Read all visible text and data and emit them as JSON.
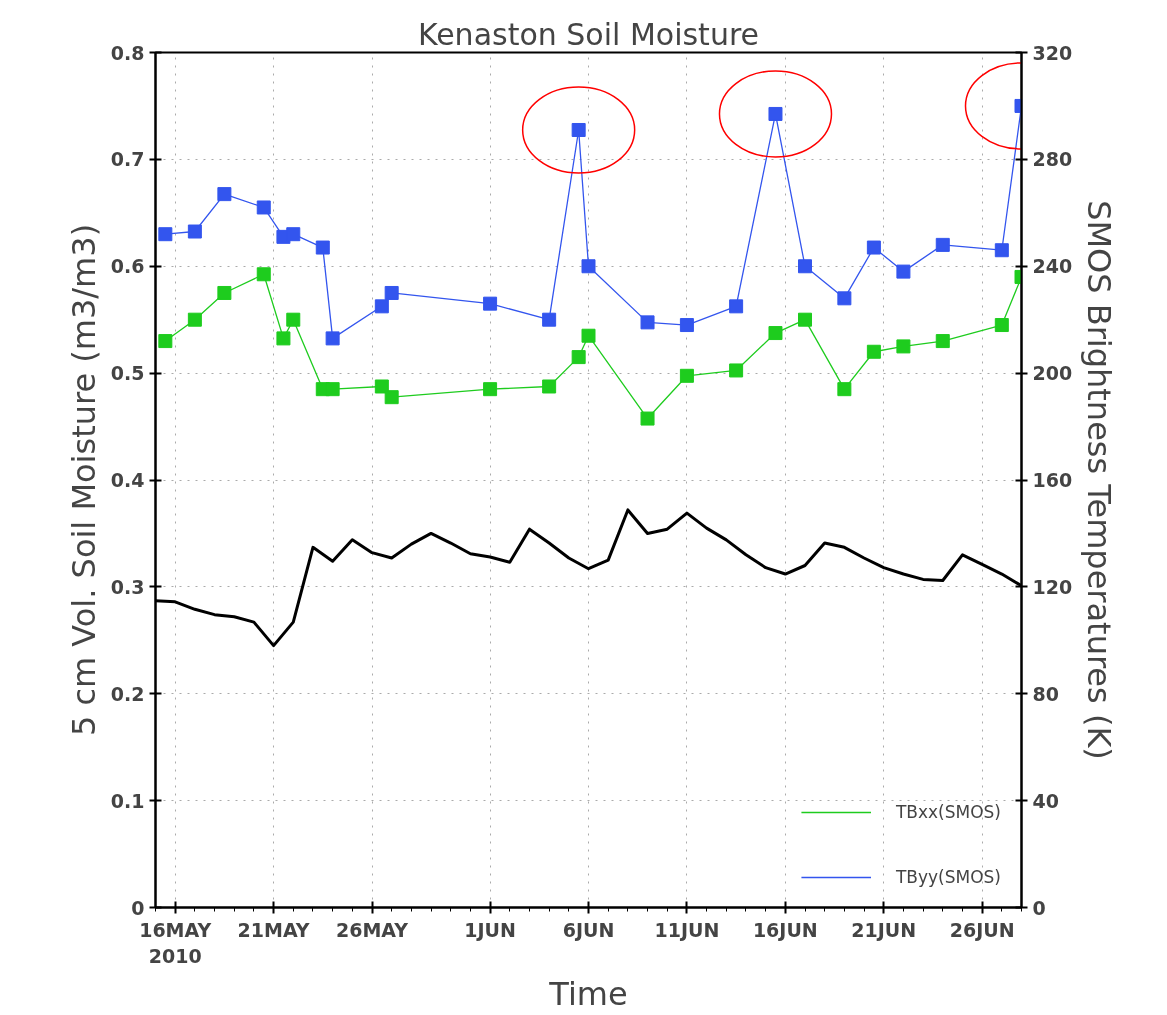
{
  "chart_data": {
    "type": "line",
    "title": "Kenaston Soil Moisture",
    "xlabel": "Time",
    "ylabel": "5 cm Vol. Soil Moisture (m3/m3)",
    "y2label": "SMOS Brightness Temperatures (K)",
    "x": [
      "2010-05-15T12:00",
      "2010-05-17",
      "2010-05-18T12:00",
      "2010-05-20T12:00",
      "2010-05-21T12:00",
      "2010-05-22",
      "2010-05-23T12:00",
      "2010-05-24",
      "2010-05-26T12:00",
      "2010-05-27",
      "2010-06-01",
      "2010-06-04",
      "2010-06-05T12:00",
      "2010-06-06",
      "2010-06-09",
      "2010-06-11",
      "2010-06-13T12:00",
      "2010-06-15T12:00",
      "2010-06-17",
      "2010-06-19",
      "2010-06-20T12:00",
      "2010-06-22",
      "2010-06-24",
      "2010-06-27",
      "2010-06-28"
    ],
    "series": [
      {
        "color": "#000000",
        "line_style": "solid",
        "marker": "none",
        "x": [
          "2010-05-15",
          "2010-05-16",
          "2010-05-17",
          "2010-05-18",
          "2010-05-19",
          "2010-05-20",
          "2010-05-21",
          "2010-05-22",
          "2010-05-23",
          "2010-05-24",
          "2010-05-25",
          "2010-05-26",
          "2010-05-27",
          "2010-05-28",
          "2010-05-29",
          "2010-05-30",
          "2010-05-31",
          "2010-06-01",
          "2010-06-02",
          "2010-06-03",
          "2010-06-04",
          "2010-06-05",
          "2010-06-06",
          "2010-06-07",
          "2010-06-08",
          "2010-06-09",
          "2010-06-10",
          "2010-06-11",
          "2010-06-12",
          "2010-06-13",
          "2010-06-14",
          "2010-06-15",
          "2010-06-16",
          "2010-06-17",
          "2010-06-18",
          "2010-06-19",
          "2010-06-20",
          "2010-06-21",
          "2010-06-22",
          "2010-06-23",
          "2010-06-24",
          "2010-06-25",
          "2010-06-26",
          "2010-06-27",
          "2010-06-28"
        ],
        "values": [
          0.287,
          0.286,
          0.279,
          0.274,
          0.272,
          0.267,
          0.245,
          0.267,
          0.337,
          0.324,
          0.344,
          0.332,
          0.327,
          0.34,
          0.35,
          0.341,
          0.331,
          0.328,
          0.323,
          0.354,
          0.341,
          0.327,
          0.317,
          0.325,
          0.372,
          0.35,
          0.354,
          0.369,
          0.355,
          0.344,
          0.33,
          0.318,
          0.312,
          0.32,
          0.341,
          0.337,
          0.327,
          0.318,
          0.312,
          0.307,
          0.306,
          0.33,
          0.321,
          0.312,
          0.301
        ]
      },
      {
        "name": "TBxx(SMOS)",
        "color": "#1ecc1e",
        "axis": "y2",
        "line_style": "solid",
        "marker": "square",
        "values": [
          212,
          220,
          230,
          237,
          213,
          220,
          194,
          194,
          195,
          191,
          194,
          195,
          206,
          214,
          183,
          199,
          201,
          215,
          220,
          194,
          208,
          210,
          212,
          218,
          236
        ]
      },
      {
        "name": "TByy(SMOS)",
        "color": "#3355ee",
        "axis": "y2",
        "line_style": "solid",
        "marker": "square",
        "values": [
          252,
          253,
          267,
          262,
          251,
          252,
          247,
          213,
          225,
          230,
          226,
          220,
          291,
          240,
          219,
          218,
          225,
          297,
          240,
          228,
          247,
          238,
          248,
          246,
          300
        ]
      }
    ],
    "xlim": [
      "2010-05-15",
      "2010-06-28"
    ],
    "xticks": [
      {
        "value": "2010-05-16",
        "label": "16MAY\n2010"
      },
      {
        "value": "2010-05-21",
        "label": "21MAY"
      },
      {
        "value": "2010-05-26",
        "label": "26MAY"
      },
      {
        "value": "2010-06-01",
        "label": "1JUN"
      },
      {
        "value": "2010-06-06",
        "label": "6JUN"
      },
      {
        "value": "2010-06-11",
        "label": "11JUN"
      },
      {
        "value": "2010-06-16",
        "label": "16JUN"
      },
      {
        "value": "2010-06-21",
        "label": "21JUN"
      },
      {
        "value": "2010-06-26",
        "label": "26JUN"
      }
    ],
    "ylim": [
      0,
      0.8
    ],
    "yticks": [
      0,
      0.1,
      0.2,
      0.3,
      0.4,
      0.5,
      0.6,
      0.7,
      0.8
    ],
    "y2lim": [
      0,
      320
    ],
    "y2ticks": [
      0,
      40,
      80,
      120,
      160,
      200,
      240,
      280,
      320
    ],
    "grid": true,
    "legend": "bottom right"
  }
}
